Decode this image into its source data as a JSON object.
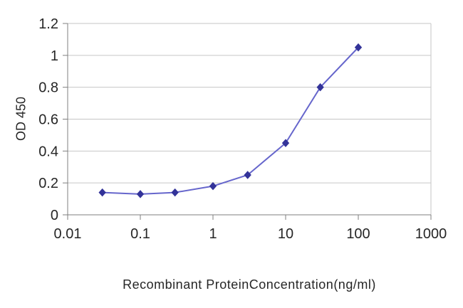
{
  "chart_data": {
    "type": "line",
    "title": "",
    "xlabel": "Recombinant ProteinConcentration(ng/ml)",
    "ylabel": "OD 450",
    "x_scale": "log",
    "xlim": [
      0.01,
      1000
    ],
    "ylim": [
      0,
      1.2
    ],
    "x": [
      0.03,
      0.1,
      0.3,
      1,
      3,
      10,
      30,
      100
    ],
    "y": [
      0.14,
      0.13,
      0.14,
      0.18,
      0.25,
      0.45,
      0.8,
      1.05
    ],
    "x_ticks": [
      {
        "value": 0.01,
        "label": "0.01"
      },
      {
        "value": 0.1,
        "label": "0.1"
      },
      {
        "value": 1,
        "label": "1"
      },
      {
        "value": 10,
        "label": "10"
      },
      {
        "value": 100,
        "label": "100"
      },
      {
        "value": 1000,
        "label": "1000"
      }
    ],
    "y_ticks": [
      {
        "value": 0,
        "label": "0"
      },
      {
        "value": 0.2,
        "label": "0.2"
      },
      {
        "value": 0.4,
        "label": "0.4"
      },
      {
        "value": 0.6,
        "label": "0.6"
      },
      {
        "value": 0.8,
        "label": "0.8"
      },
      {
        "value": 1,
        "label": "1"
      },
      {
        "value": 1.2,
        "label": "1.2"
      }
    ],
    "grid": "horizontal",
    "legend": "none",
    "marker": "diamond",
    "colors": {
      "line": "#6666cc",
      "marker": "#333399",
      "grid": "#c6c6c6",
      "axis": "#7f7f7f",
      "text": "#262626",
      "background": "#ffffff"
    }
  }
}
